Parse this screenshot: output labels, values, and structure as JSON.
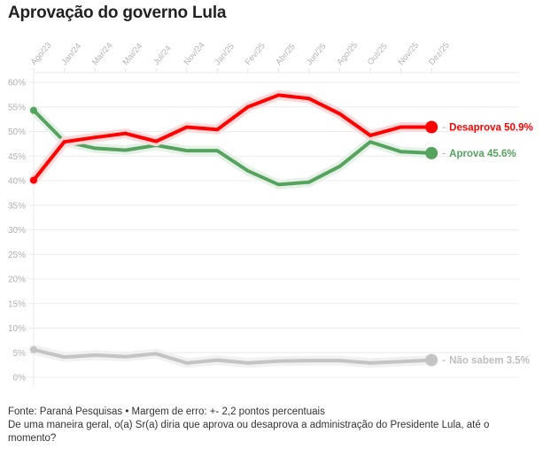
{
  "title": "Aprovação do governo Lula",
  "footer": {
    "source": "Fonte: Paraná Pesquisas • Margem de erro: +- 2,2 pontos percentuais",
    "question": "De uma maneira geral, o(a) Sr(a) diria que aprova ou desaprova a administração do Presidente Lula, até o momento?"
  },
  "chart_data": {
    "type": "line",
    "title": "Aprovação do governo Lula",
    "xlabel": "",
    "ylabel": "",
    "x": [
      "Ago/23",
      "Jan/24",
      "Mar/24",
      "Mai/24",
      "Jul/24",
      "Nov/24",
      "Jan/25",
      "Fev/25",
      "Abr/25",
      "Jun/25",
      "Ago/25",
      "Out/25",
      "Nov/25",
      "Dez/25"
    ],
    "ylim": [
      0,
      60
    ],
    "yticks": [
      0,
      5,
      10,
      15,
      20,
      25,
      30,
      35,
      40,
      45,
      50,
      55,
      60
    ],
    "ytick_labels": [
      "0%",
      "5%",
      "10%",
      "15%",
      "20%",
      "25%",
      "30%",
      "35%",
      "40%",
      "45%",
      "50%",
      "55%",
      "60%"
    ],
    "grid": true,
    "legend": "end-of-line labels (right)",
    "series": [
      {
        "name": "Desaprova",
        "end_label": "Desaprova 50.9%",
        "color": "#ff0000",
        "halo": "#fcdada",
        "values": [
          40.1,
          47.9,
          48.8,
          49.6,
          48.0,
          50.9,
          50.4,
          55.0,
          57.4,
          56.7,
          53.6,
          49.2,
          50.9,
          50.9
        ]
      },
      {
        "name": "Aprova",
        "end_label": "Aprova 45.6%",
        "color": "#56a360",
        "halo": "#e6f2e7",
        "values": [
          54.3,
          48.0,
          46.6,
          46.2,
          47.2,
          46.1,
          46.1,
          42.0,
          39.2,
          39.7,
          42.9,
          47.9,
          45.9,
          45.6
        ]
      },
      {
        "name": "Não sabem",
        "end_label": "Não sabem 3.5%",
        "color": "#c4c4c4",
        "halo": "#f1f1f1",
        "values": [
          5.6,
          4.1,
          4.5,
          4.2,
          4.8,
          2.9,
          3.5,
          2.9,
          3.3,
          3.4,
          3.4,
          2.9,
          3.2,
          3.5
        ]
      }
    ]
  }
}
